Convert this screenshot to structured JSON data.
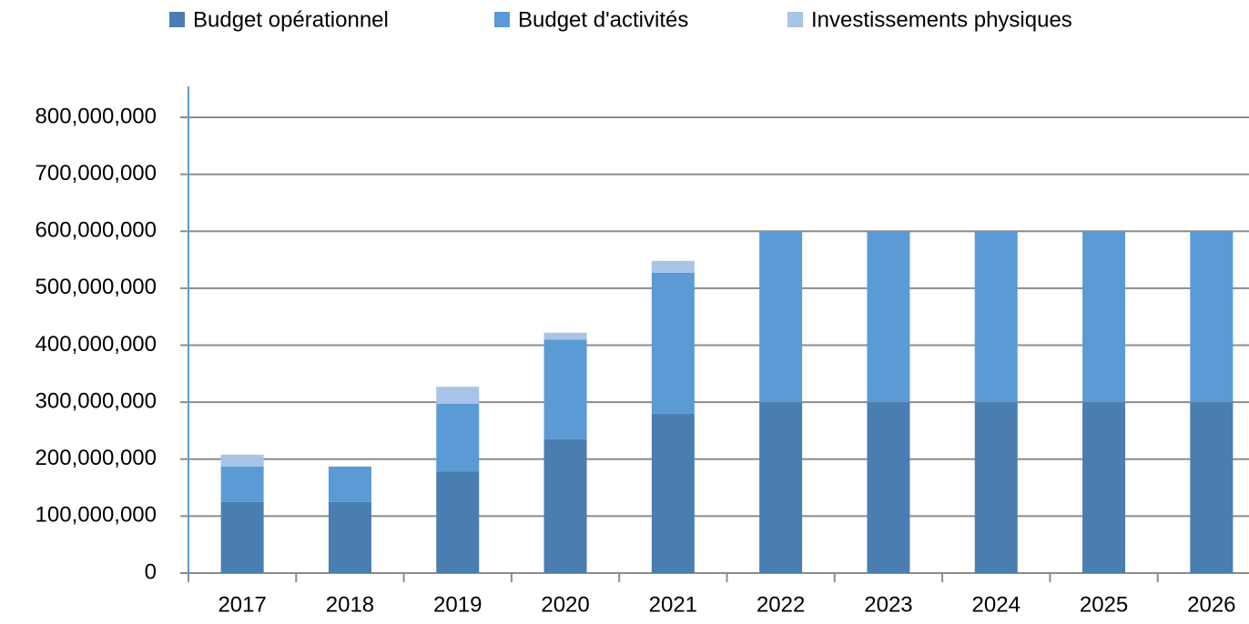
{
  "chart_data": {
    "type": "stacked_bar",
    "categories": [
      "2017",
      "2018",
      "2019",
      "2020",
      "2021",
      "2022",
      "2023",
      "2024",
      "2025",
      "2026"
    ],
    "series": [
      {
        "name": "Budget opérationnel",
        "color": "#4a7eb0",
        "values": [
          125000000,
          125000000,
          178000000,
          235000000,
          280000000,
          300000000,
          300000000,
          300000000,
          300000000,
          300000000
        ]
      },
      {
        "name": "Budget d'activités",
        "color": "#5b9bd5",
        "values": [
          62000000,
          62000000,
          119000000,
          175000000,
          247000000,
          300000000,
          300000000,
          300000000,
          300000000,
          300000000
        ]
      },
      {
        "name": "Investissements physiques",
        "color": "#a9c4e6",
        "values": [
          21000000,
          0,
          30000000,
          12000000,
          21000000,
          0,
          0,
          0,
          0,
          0
        ]
      }
    ],
    "ylim": [
      0,
      800000000
    ],
    "yticks": [
      0,
      {
        "value": 100000000,
        "label": "100,000,000"
      },
      {
        "value": 200000000,
        "label": "200,000,000"
      },
      {
        "value": 300000000,
        "label": "300,000,000"
      },
      {
        "value": 400000000,
        "label": "400,000,000"
      },
      {
        "value": 500000000,
        "label": "500,000,000"
      },
      {
        "value": 600000000,
        "label": "600,000,000"
      },
      {
        "value": 700000000,
        "label": "700,000,000"
      },
      {
        "value": 800000000,
        "label": "800,000,000"
      }
    ],
    "grid": true,
    "legend": "top"
  }
}
